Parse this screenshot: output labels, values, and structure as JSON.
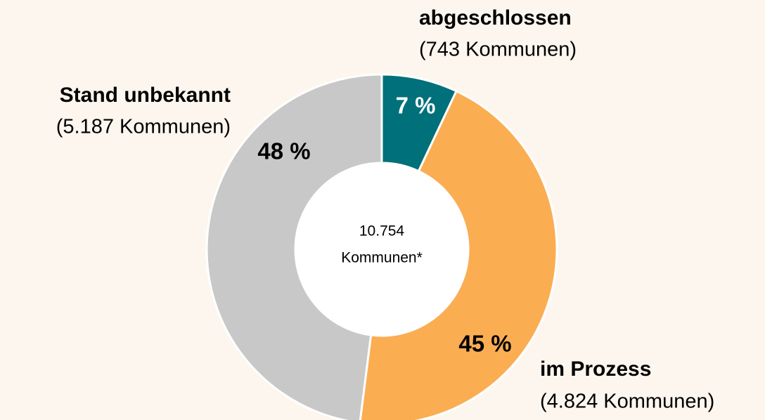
{
  "chart_data": {
    "type": "donut",
    "categories": [
      "abgeschlossen",
      "im Prozess",
      "Stand unbekannt"
    ],
    "sublabels": [
      "(743 Kommunen)",
      "(4.824 Kommunen)",
      "(5.187 Kommunen)"
    ],
    "values": [
      7,
      45,
      48
    ],
    "value_labels": [
      "7 %",
      "45 %",
      "48 %"
    ],
    "colors": [
      "#00707a",
      "#fbad52",
      "#c8c8c8"
    ],
    "center_label": [
      "10.754",
      "Kommunen*"
    ]
  }
}
